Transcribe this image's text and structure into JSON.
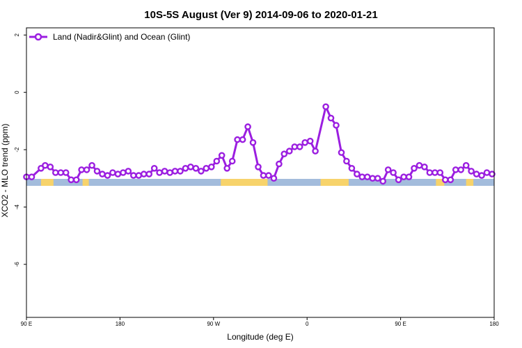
{
  "chart_data": {
    "type": "line",
    "title": "10S-5S August (Ver 9)   2014-09-06 to 2020-01-21",
    "xlabel": "Longitude (deg E)",
    "ylabel": "XCO2 - MLO trend (ppm)",
    "xlim": [
      90,
      540
    ],
    "ylim": [
      -7.85,
      2.25
    ],
    "x_ticks": [
      {
        "value": 90,
        "label": "90 E"
      },
      {
        "value": 180,
        "label": "180"
      },
      {
        "value": 270,
        "label": "90 W"
      },
      {
        "value": 360,
        "label": "0"
      },
      {
        "value": 450,
        "label": "90 E"
      },
      {
        "value": 540,
        "label": "180"
      }
    ],
    "y_ticks": [
      {
        "value": 2,
        "label": "2"
      },
      {
        "value": 0,
        "label": "0"
      },
      {
        "value": -2,
        "label": "-2"
      },
      {
        "value": -4,
        "label": "-4"
      },
      {
        "value": -6,
        "label": "-6"
      }
    ],
    "legend": {
      "position": "top-left"
    },
    "colors": {
      "series": "#9b1ee0",
      "ocean": "#a3bcdc",
      "land": "#f7d36b"
    },
    "land_bands": [
      [
        104,
        116
      ],
      [
        144,
        150
      ],
      [
        277,
        322
      ],
      [
        373,
        400
      ],
      [
        484,
        492
      ],
      [
        513,
        520
      ]
    ],
    "series": [
      {
        "name": "Land (Nadir&Glint) and Ocean (Glint)",
        "x": [
          90,
          95,
          104,
          108,
          113,
          118,
          123,
          128,
          133,
          138,
          143,
          148,
          153,
          158,
          163,
          168,
          173,
          178,
          183,
          188,
          193,
          198,
          203,
          208,
          213,
          218,
          223,
          228,
          233,
          238,
          243,
          248,
          253,
          258,
          263,
          268,
          273,
          278,
          283,
          288,
          293,
          298,
          303,
          308,
          313,
          318,
          323,
          328,
          333,
          338,
          343,
          348,
          353,
          358,
          363,
          368,
          378,
          383,
          388,
          393,
          398,
          403,
          408,
          413,
          418,
          423,
          428,
          433,
          438,
          443,
          448,
          453,
          458,
          463,
          468,
          473,
          478,
          483,
          488,
          493,
          498,
          503,
          508,
          513,
          518,
          523,
          528,
          533,
          538
        ],
        "values": [
          -2.95,
          -2.95,
          -2.65,
          -2.55,
          -2.6,
          -2.8,
          -2.8,
          -2.8,
          -3.05,
          -3.05,
          -2.7,
          -2.7,
          -2.55,
          -2.75,
          -2.85,
          -2.9,
          -2.8,
          -2.85,
          -2.8,
          -2.75,
          -2.9,
          -2.9,
          -2.85,
          -2.85,
          -2.65,
          -2.8,
          -2.75,
          -2.8,
          -2.75,
          -2.75,
          -2.65,
          -2.6,
          -2.65,
          -2.75,
          -2.65,
          -2.6,
          -2.4,
          -2.2,
          -2.65,
          -2.4,
          -1.65,
          -1.65,
          -1.2,
          -1.75,
          -2.6,
          -2.9,
          -2.9,
          -3.0,
          -2.5,
          -2.15,
          -2.05,
          -1.9,
          -1.9,
          -1.75,
          -1.7,
          -2.05,
          -0.5,
          -0.9,
          -1.15,
          -2.1,
          -2.4,
          -2.65,
          -2.85,
          -2.95,
          -2.95,
          -3.0,
          -3.0,
          -3.1,
          -2.7,
          -2.8,
          -3.05,
          -2.95,
          -2.95,
          -2.65,
          -2.55,
          -2.6,
          -2.8,
          -2.8,
          -2.8,
          -3.05,
          -3.05,
          -2.7,
          -2.7,
          -2.55,
          -2.75,
          -2.85,
          -2.9,
          -2.8,
          -2.85
        ]
      }
    ]
  }
}
